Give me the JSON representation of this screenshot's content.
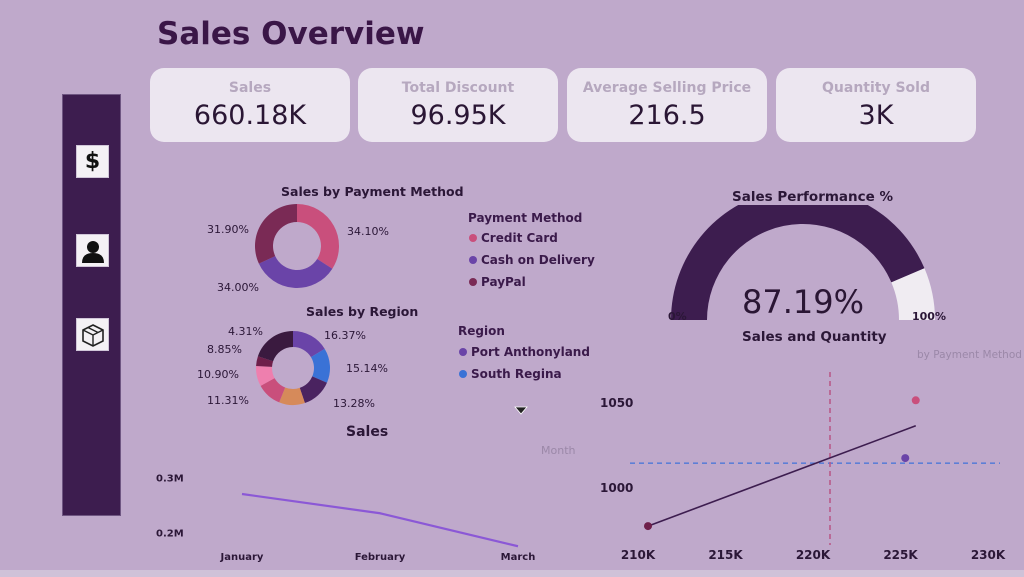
{
  "page_title": "Sales Overview",
  "kpis": [
    {
      "label": "Sales",
      "value": "660.18K"
    },
    {
      "label": "Total Discount",
      "value": "96.95K"
    },
    {
      "label": "Average Selling Price",
      "value": "216.5"
    },
    {
      "label": "Quantity Sold",
      "value": "3K"
    }
  ],
  "sidebar": {
    "buttons": [
      {
        "icon": "dollar-icon",
        "glyph": "$"
      },
      {
        "icon": "person-icon"
      },
      {
        "icon": "package-icon"
      }
    ]
  },
  "colors": {
    "background": "#bfa9cb",
    "sidebar": "#3d1d4f",
    "gauge": "#3d1d4f",
    "credit_card": "#c94f7c",
    "cash_on_delivery": "#6a44a8",
    "paypal": "#7a2a55",
    "line": "#8b58d6"
  },
  "chart_data": [
    {
      "type": "pie",
      "title": "Sales by Payment Method",
      "legend_title": "Payment Method",
      "series": [
        {
          "name": "Credit Card",
          "value": 34.1,
          "label": "34.10%",
          "color": "#c94f7c"
        },
        {
          "name": "Cash on Delivery",
          "value": 34.0,
          "label": "34.00%",
          "color": "#6a44a8"
        },
        {
          "name": "PayPal",
          "value": 31.9,
          "label": "31.90%",
          "color": "#7a2a55"
        }
      ]
    },
    {
      "type": "pie",
      "title": "Sales by Region",
      "legend_title": "Region",
      "legend_entries": [
        {
          "name": "Port Anthonyland",
          "color": "#6a44a8"
        },
        {
          "name": "South Regina",
          "color": "#3a72d6"
        }
      ],
      "slices": [
        {
          "value": 16.37,
          "label": "16.37%",
          "color": "#6a44a8"
        },
        {
          "value": 15.14,
          "label": "15.14%",
          "color": "#3a72d6"
        },
        {
          "value": 13.28,
          "label": "13.28%",
          "color": "#4a2360"
        },
        {
          "value": 11.31,
          "label": "11.31%",
          "color": "#d68a5a"
        },
        {
          "value": 10.9,
          "label": "10.90%",
          "color": "#c94f7c"
        },
        {
          "value": 8.85,
          "label": "8.85%",
          "color": "#ee7fae"
        },
        {
          "value": 4.31,
          "label": "4.31%",
          "color": "#6e1f4a"
        },
        {
          "value": 19.84,
          "label": "",
          "color": "#3a1a3f"
        },
        {
          "value": 0,
          "label": "",
          "color": "#f2a07a"
        }
      ]
    },
    {
      "type": "gauge",
      "title": "Sales Performance %",
      "value": 87.19,
      "value_label": "87.19%",
      "min_label": "0%",
      "max_label": "100%"
    },
    {
      "type": "line",
      "title": "Sales",
      "legend_label": "Month",
      "categories": [
        "January",
        "February",
        "March"
      ],
      "values": [
        0.27,
        0.235,
        0.175
      ],
      "yticks": [
        {
          "v": 0.3,
          "label": "0.3M"
        },
        {
          "v": 0.2,
          "label": "0.2M"
        }
      ]
    },
    {
      "type": "scatter",
      "title": "Sales and Quantity",
      "subtitle": "by Payment Method",
      "xticks": [
        "210K",
        "215K",
        "220K",
        "225K",
        "230K"
      ],
      "xtick_values": [
        210,
        215,
        220,
        225,
        230
      ],
      "yticks": [
        {
          "v": 1050,
          "label": "1050"
        },
        {
          "v": 1000,
          "label": "1000"
        }
      ],
      "points": [
        {
          "x": 210.0,
          "y": 977,
          "color": "#6e1f4a"
        },
        {
          "x": 224.7,
          "y": 1017,
          "color": "#6a44a8"
        },
        {
          "x": 225.3,
          "y": 1051,
          "color": "#c94f7c"
        }
      ],
      "trend": {
        "x0": 210.0,
        "y0": 977,
        "x1": 225.3,
        "y1": 1036
      },
      "ref_x": 220.0,
      "ref_y": 1014
    }
  ]
}
